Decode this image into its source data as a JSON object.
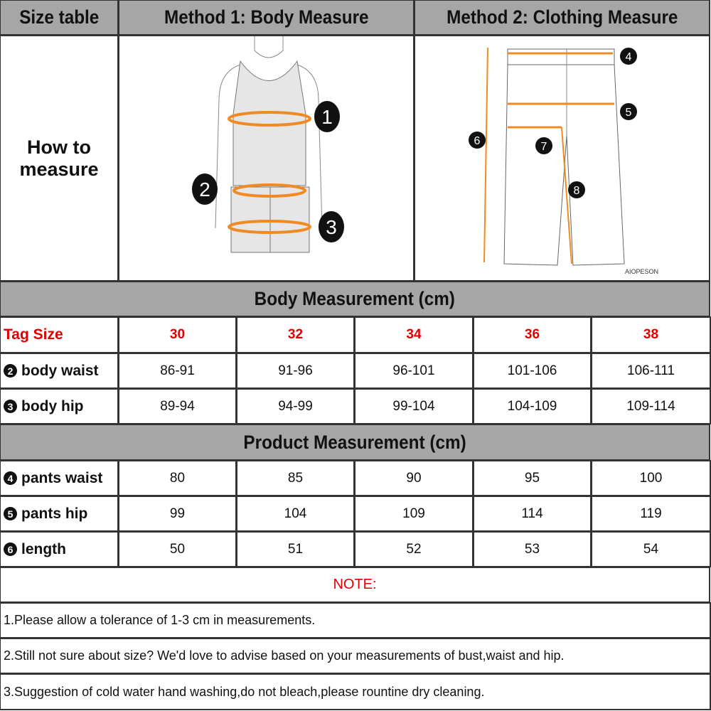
{
  "header": {
    "size_table": "Size table",
    "method1": "Method 1: Body  Measure",
    "method2": "Method 2: Clothing Measure"
  },
  "how_to": "How to measure",
  "body_markers": [
    "1",
    "2",
    "3"
  ],
  "pants_markers": [
    "4",
    "5",
    "6",
    "7",
    "8"
  ],
  "watermark": "AIOPESON",
  "body_title": "Body Measurement (cm)",
  "tag_label": "Tag Size",
  "sizes": [
    "30",
    "32",
    "34",
    "36",
    "38"
  ],
  "body_rows": [
    {
      "num": "2",
      "label": "body waist",
      "values": [
        "86-91",
        "91-96",
        "96-101",
        "101-106",
        "106-111"
      ]
    },
    {
      "num": "3",
      "label": "body hip",
      "values": [
        "89-94",
        "94-99",
        "99-104",
        "104-109",
        "109-114"
      ]
    }
  ],
  "product_title": "Product Measurement (cm)",
  "product_rows": [
    {
      "num": "4",
      "label": "pants waist",
      "values": [
        "80",
        "85",
        "90",
        "95",
        "100"
      ]
    },
    {
      "num": "5",
      "label": "pants hip",
      "values": [
        "99",
        "104",
        "109",
        "114",
        "119"
      ]
    },
    {
      "num": "6",
      "label": "length",
      "values": [
        "50",
        "51",
        "52",
        "53",
        "54"
      ]
    }
  ],
  "note_title": "NOTE:",
  "notes": [
    "1.Please allow a tolerance of 1-3 cm in measurements.",
    "2.Still not sure about size? We'd love to advise based on your measurements of bust,waist and hip.",
    "3.Suggestion of cold water hand washing,do not bleach,please rountine dry cleaning."
  ],
  "colors": {
    "header_bg": "#a6a6a6",
    "accent_orange": "#f08a24",
    "tag_red": "#e00000"
  }
}
